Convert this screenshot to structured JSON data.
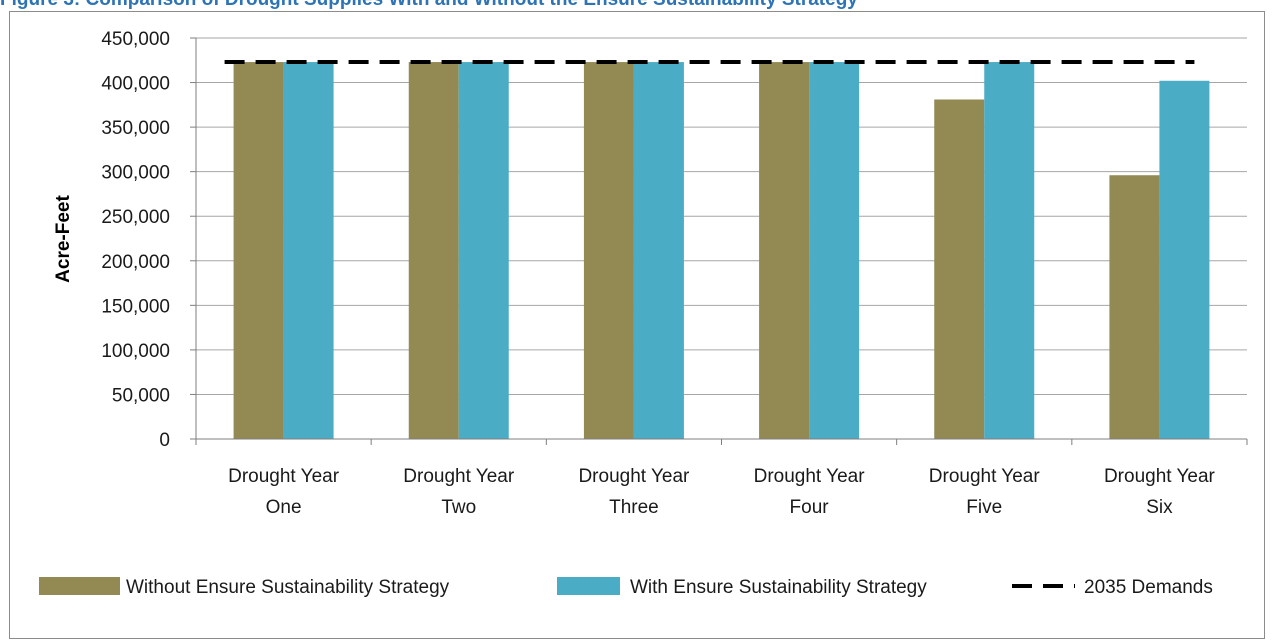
{
  "caption": "Figure 3: Comparison of Drought Supplies With and Without the Ensure Sustainability Strategy",
  "chart_data": {
    "type": "bar",
    "title": "",
    "ylabel": "Acre-Feet",
    "xlabel": "",
    "ylim": [
      0,
      450000
    ],
    "yticks": [
      0,
      50000,
      100000,
      150000,
      200000,
      250000,
      300000,
      350000,
      400000,
      450000
    ],
    "ytick_labels": [
      "0",
      "50,000",
      "100,000",
      "150,000",
      "200,000",
      "250,000",
      "300,000",
      "350,000",
      "400,000",
      "450,000"
    ],
    "categories": [
      [
        "Drought Year",
        "One"
      ],
      [
        "Drought Year",
        "Two"
      ],
      [
        "Drought Year",
        "Three"
      ],
      [
        "Drought Year",
        "Four"
      ],
      [
        "Drought Year",
        "Five"
      ],
      [
        "Drought Year",
        "Six"
      ]
    ],
    "series": [
      {
        "name": "Without Ensure Sustainability Strategy",
        "type": "bar",
        "color": "#938953",
        "values": [
          423000,
          423000,
          423000,
          423000,
          381000,
          296000
        ]
      },
      {
        "name": "With Ensure Sustainability Strategy",
        "type": "bar",
        "color": "#4BACC6",
        "values": [
          423000,
          423000,
          423000,
          423000,
          423000,
          402000
        ]
      },
      {
        "name": "2035 Demands",
        "type": "line",
        "style": "dashed",
        "color": "#000000",
        "values": [
          423000,
          423000,
          423000,
          423000,
          423000,
          423000
        ]
      }
    ],
    "grid": true,
    "legend_position": "bottom"
  }
}
